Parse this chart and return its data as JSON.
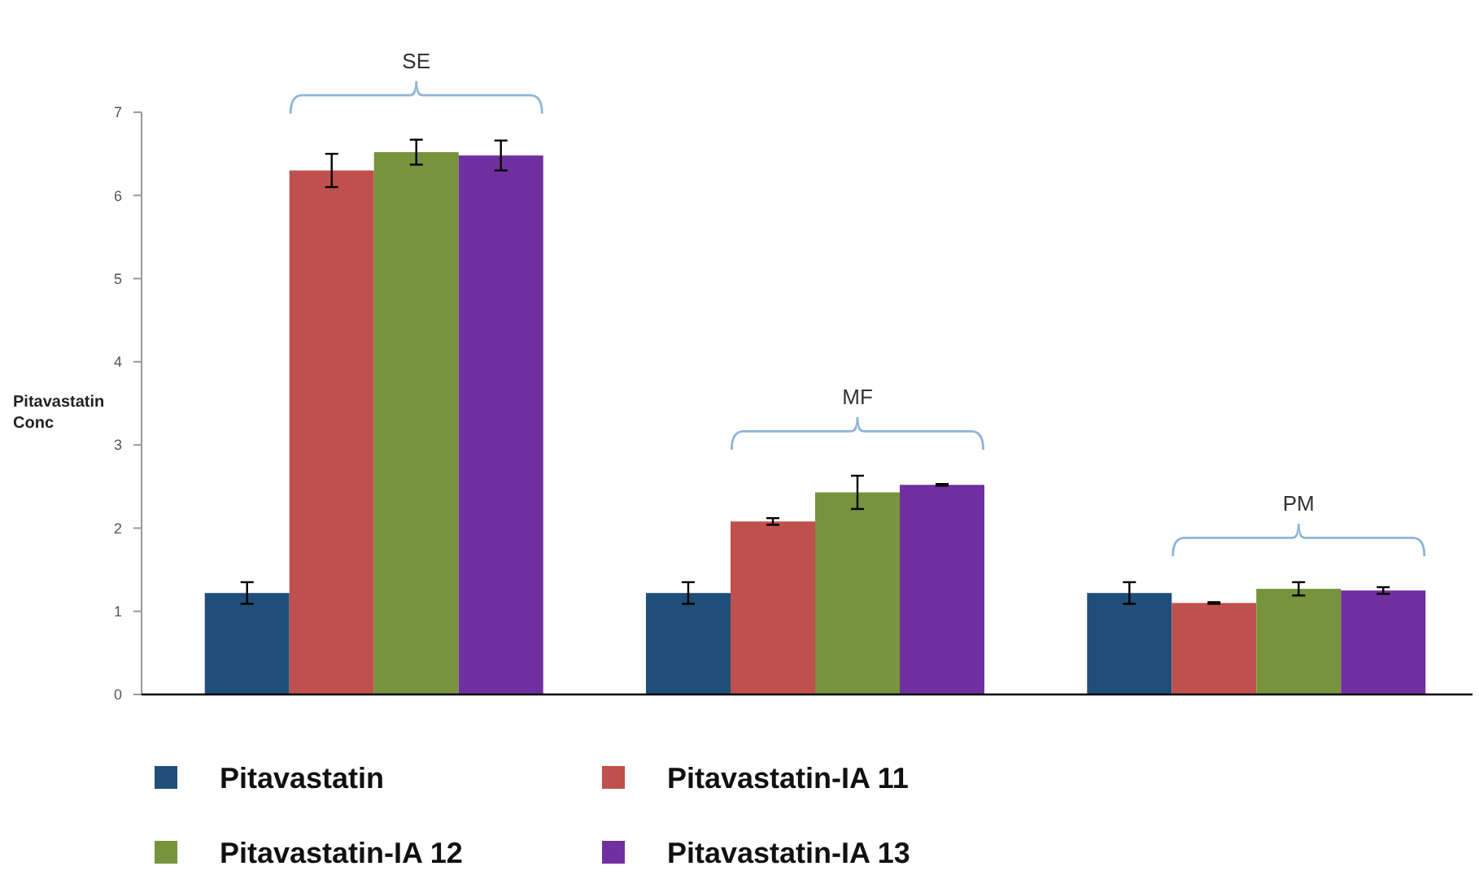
{
  "chart_data": {
    "type": "bar",
    "ylabel": "Pitavastatin Conc",
    "categories": [
      null,
      null,
      null
    ],
    "series": [
      {
        "name": "Pitavastatin",
        "color": "#1f4e79",
        "values": [
          1.22,
          1.22,
          1.22
        ],
        "errors": [
          0.13,
          0.13,
          0.13
        ]
      },
      {
        "name": "Pitavastatin-IA 11",
        "color": "#c0504d",
        "values": [
          6.3,
          2.08,
          1.1
        ],
        "errors": [
          0.2,
          0.04,
          0.01
        ]
      },
      {
        "name": "Pitavastatin-IA 12",
        "color": "#77933c",
        "values": [
          6.52,
          2.43,
          1.27
        ],
        "errors": [
          0.15,
          0.2,
          0.08
        ]
      },
      {
        "name": "Pitavastatin-IA 13",
        "color": "#7030a0",
        "values": [
          6.48,
          2.52,
          1.25
        ],
        "errors": [
          0.18,
          0.01,
          0.04
        ]
      }
    ],
    "annotations": [
      "SE",
      "MF",
      "PM"
    ],
    "ylim": [
      0,
      7
    ],
    "yticks": [
      0,
      1,
      2,
      3,
      4,
      5,
      6,
      7
    ],
    "grid": false,
    "legend": "bottom"
  }
}
